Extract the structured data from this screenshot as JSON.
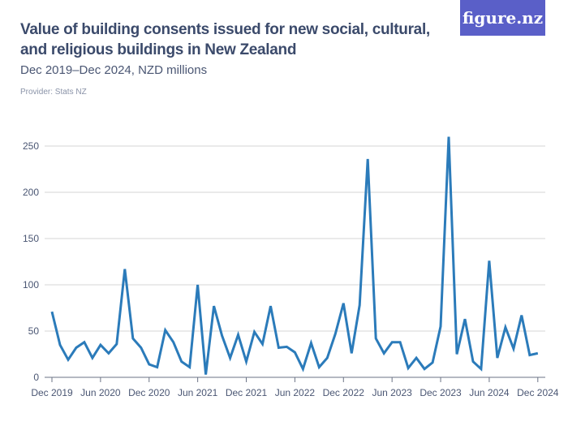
{
  "header": {
    "title": "Value of building consents issued for new social, cultural, and religious buildings in New Zealand",
    "subtitle": "Dec 2019–Dec 2024, NZD millions",
    "provider": "Provider: Stats NZ",
    "logo": "figure.nz"
  },
  "chart_data": {
    "type": "line",
    "title": "Value of building consents issued for new social, cultural, and religious buildings in New Zealand",
    "subtitle": "Dec 2019–Dec 2024, NZD millions",
    "x_start": "Dec 2019",
    "x_end": "Dec 2024",
    "frequency": "monthly",
    "x_tick_labels": [
      "Dec 2019",
      "Jun 2020",
      "Dec 2020",
      "Jun 2021",
      "Dec 2021",
      "Jun 2022",
      "Dec 2022",
      "Jun 2023",
      "Dec 2023",
      "Jun 2024",
      "Dec 2024"
    ],
    "y_ticks": [
      0,
      50,
      100,
      150,
      200,
      250
    ],
    "ylim": [
      0,
      260
    ],
    "grid": true,
    "line_color": "#2b7bba",
    "values": [
      71,
      35,
      19,
      32,
      38,
      21,
      35,
      26,
      36,
      117,
      42,
      32,
      14,
      11,
      51,
      38,
      17,
      11,
      100,
      3,
      77,
      45,
      21,
      46,
      17,
      49,
      36,
      77,
      32,
      33,
      27,
      9,
      37,
      11,
      21,
      47,
      80,
      26,
      78,
      236,
      42,
      26,
      38,
      38,
      10,
      21,
      9,
      16,
      55,
      260,
      25,
      63,
      17,
      9,
      126,
      21,
      54,
      31,
      67,
      24,
      26
    ]
  }
}
